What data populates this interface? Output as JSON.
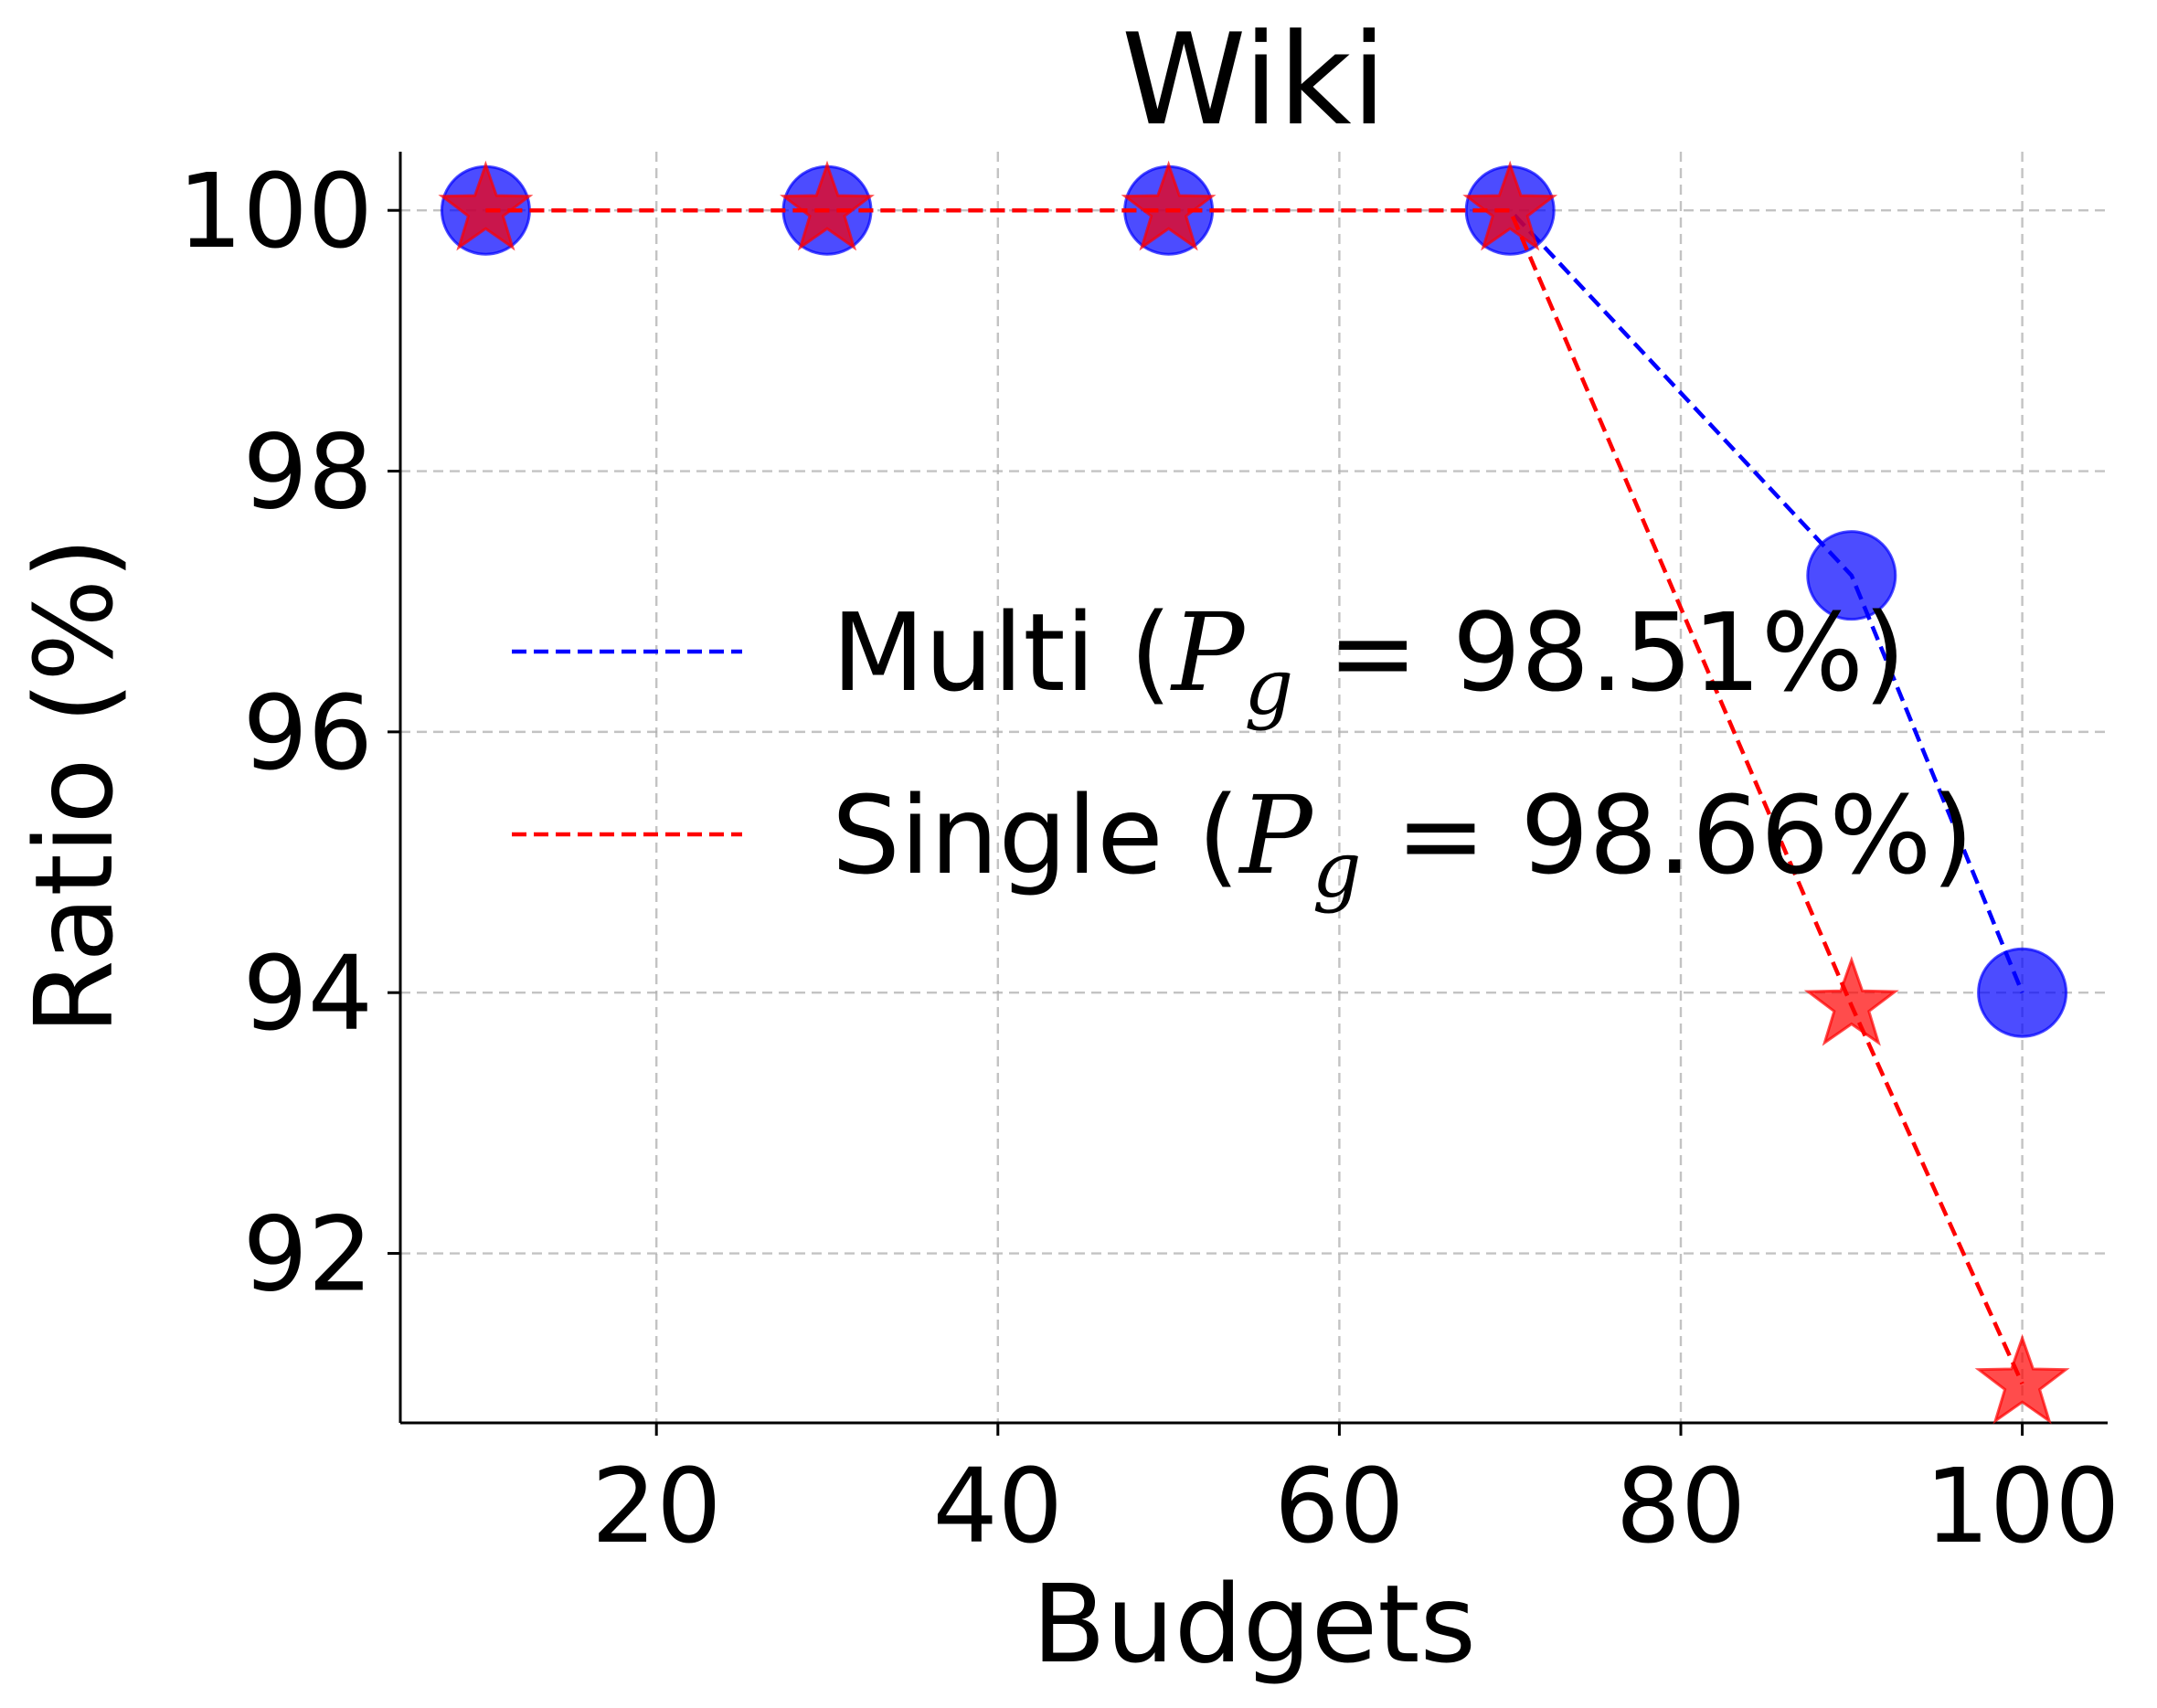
{
  "chart_data": {
    "type": "line",
    "title": "Wiki",
    "xlabel": "Budgets",
    "ylabel": "Ratio (%)",
    "xlim": [
      5,
      105
    ],
    "ylim": [
      90.7,
      100.45
    ],
    "x_ticks": [
      20,
      40,
      60,
      80,
      100
    ],
    "y_ticks": [
      92,
      94,
      96,
      98,
      100
    ],
    "grid": true,
    "legend_position": "center-right",
    "x": [
      10,
      30,
      50,
      70,
      90,
      100
    ],
    "series": [
      {
        "name": "Multi",
        "legend_prefix": "Multi (",
        "legend_math_var": "P",
        "legend_math_sub": "g",
        "legend_math_rest": " = 98.51%)",
        "values": [
          100,
          100,
          100,
          100,
          97.2,
          94.0
        ],
        "color": "#0000ff",
        "marker": "circle"
      },
      {
        "name": "Single",
        "legend_prefix": "Single (",
        "legend_math_var": "P",
        "legend_math_sub": "g",
        "legend_math_rest": " = 98.66%)",
        "values": [
          100,
          100,
          100,
          100,
          93.9,
          91.0
        ],
        "color": "#ff0000",
        "marker": "star"
      }
    ]
  }
}
